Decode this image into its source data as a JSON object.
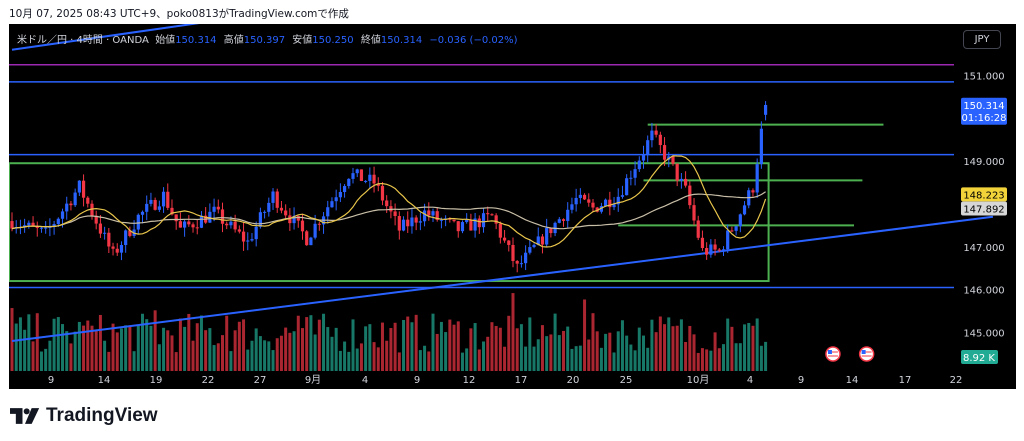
{
  "caption": "10月 07, 2025 08:43 UTC+9、poko0813がTradingView.comで作成",
  "legend": {
    "symbol": "米ドル／円 · 4時間 · OANDA",
    "open_label": "始値",
    "open": "150.314",
    "high_label": "高値",
    "high": "150.397",
    "low_label": "安値",
    "low": "150.250",
    "close_label": "終値",
    "close": "150.314",
    "change": "−0.036 (−0.02%)"
  },
  "currency_button": "JPY",
  "brand": "TradingView",
  "colors": {
    "background": "#000000",
    "up": "#2962ff",
    "down": "#f23645",
    "vol_up": "#22ab94",
    "vol_down": "#f23645",
    "ma_fast": "#e8c54b",
    "ma_slow": "#c9bfa8",
    "level_line": "#2962ff",
    "resistance_top": "#9c27b0",
    "box": "#4caf50"
  },
  "chart_data": {
    "type": "candlestick",
    "symbol": "USDJPY",
    "timeframe": "4h",
    "ylim": [
      144.1,
      152.2
    ],
    "y_ticks": [
      "151.000",
      "149.000",
      "147.000",
      "146.000",
      "145.000"
    ],
    "y_tick_values": [
      151.0,
      149.0,
      147.0,
      146.0,
      145.0
    ],
    "x_ticks": [
      "9",
      "14",
      "19",
      "22",
      "27",
      "9月",
      "4",
      "9",
      "12",
      "17",
      "20",
      "25",
      "10月",
      "4",
      "9",
      "14",
      "17",
      "22"
    ],
    "candle_count": 180,
    "waypoints": [
      [
        0,
        147.6
      ],
      [
        8,
        147.3
      ],
      [
        16,
        148.4
      ],
      [
        24,
        146.8
      ],
      [
        30,
        147.7
      ],
      [
        36,
        148.2
      ],
      [
        40,
        147.4
      ],
      [
        48,
        147.8
      ],
      [
        56,
        147.1
      ],
      [
        62,
        148.2
      ],
      [
        70,
        147.2
      ],
      [
        80,
        148.7
      ],
      [
        86,
        148.5
      ],
      [
        92,
        147.4
      ],
      [
        98,
        147.8
      ],
      [
        106,
        147.4
      ],
      [
        114,
        147.7
      ],
      [
        120,
        146.5
      ],
      [
        126,
        147.2
      ],
      [
        134,
        148.1
      ],
      [
        138,
        147.9
      ],
      [
        144,
        148.2
      ],
      [
        152,
        149.6
      ],
      [
        156,
        149.0
      ],
      [
        160,
        148.3
      ],
      [
        164,
        146.9
      ],
      [
        168,
        146.9
      ],
      [
        172,
        147.6
      ],
      [
        176,
        148.4
      ],
      [
        179,
        150.3
      ]
    ],
    "current_price": "150.314",
    "countdown": "01:16:28",
    "ma_fast_value": "148.223",
    "ma_slow_value": "147.892",
    "volume_label": "8.92 K",
    "horizontal_lines": [
      151.25,
      150.85,
      149.15,
      146.05
    ],
    "resistance_top": 151.25,
    "upper_level": 150.85,
    "mid_level": 149.15,
    "lower_level": 146.05,
    "range_box": {
      "top": 148.95,
      "bottom": 146.2,
      "start": 0,
      "end": 179
    },
    "green_levels": [
      {
        "price": 149.85,
        "from": 151,
        "to": 207
      },
      {
        "price": 148.55,
        "from": 150,
        "to": 202
      },
      {
        "price": 147.5,
        "from": 144,
        "to": 200
      }
    ],
    "trend_lines": [
      {
        "from": [
          0,
          144.8
        ],
        "to": [
          233,
          147.7
        ]
      },
      {
        "from": [
          0,
          151.6
        ],
        "to": [
          50,
          152.3
        ]
      }
    ],
    "event_markers": [
      195,
      203
    ]
  }
}
